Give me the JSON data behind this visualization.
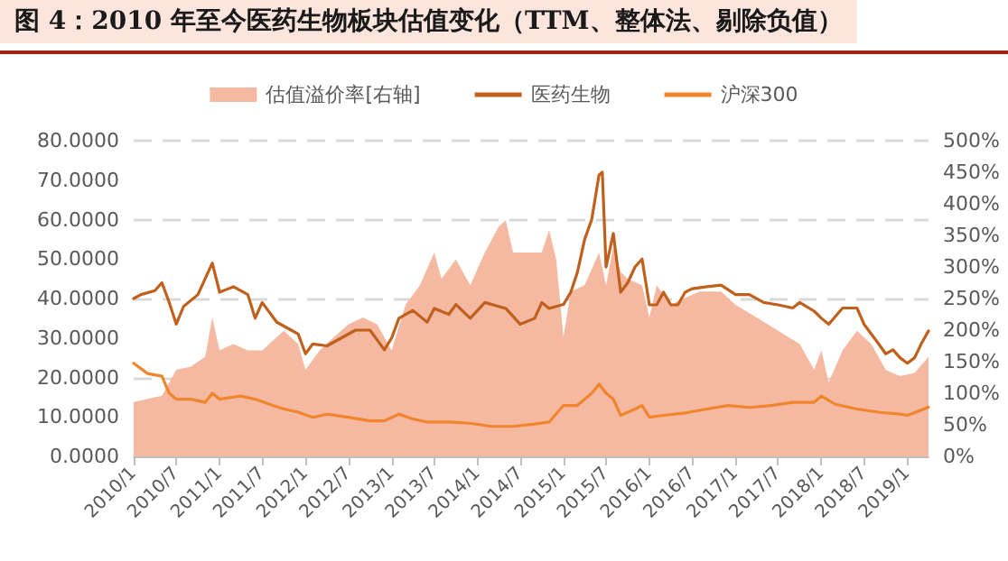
{
  "chart_data": {
    "type": "line",
    "title": "图 4：2010 年至今医药生物板块估值变化（TTM、整体法、剔除负值）",
    "series": [
      {
        "name": "估值溢价率[右轴]",
        "type": "area",
        "axis": "y2",
        "color": "#f4b9a0",
        "x": [
          "2010-01",
          "2010-03",
          "2010-05",
          "2010-07",
          "2010-09",
          "2010-11",
          "2010-12",
          "2011-01",
          "2011-03",
          "2011-05",
          "2011-07",
          "2011-09",
          "2011-10",
          "2011-12",
          "2012-01",
          "2012-03",
          "2012-05",
          "2012-07",
          "2012-09",
          "2012-11",
          "2013-01",
          "2013-03",
          "2013-05",
          "2013-07",
          "2013-08",
          "2013-10",
          "2013-12",
          "2014-02",
          "2014-04",
          "2014-05",
          "2014-06",
          "2014-08",
          "2014-10",
          "2014-11",
          "2014-12",
          "2015-01",
          "2015-02",
          "2015-04",
          "2015-06",
          "2015-07",
          "2015-08",
          "2015-09",
          "2015-10",
          "2015-12",
          "2016-01",
          "2016-02",
          "2016-04",
          "2016-06",
          "2016-08",
          "2016-11",
          "2017-01",
          "2017-04",
          "2017-07",
          "2017-10",
          "2017-12",
          "2018-01",
          "2018-02",
          "2018-04",
          "2018-06",
          "2018-08",
          "2018-10",
          "2018-12",
          "2019-02",
          "2019-04"
        ],
        "values": [
          86,
          91,
          96,
          137,
          142,
          158,
          220,
          168,
          178,
          168,
          168,
          189,
          199,
          178,
          137,
          168,
          189,
          209,
          220,
          209,
          168,
          240,
          271,
          323,
          281,
          312,
          271,
          323,
          364,
          374,
          323,
          323,
          323,
          359,
          312,
          189,
          261,
          271,
          323,
          271,
          333,
          292,
          281,
          271,
          220,
          271,
          240,
          251,
          261,
          261,
          240,
          220,
          199,
          178,
          137,
          168,
          117,
          168,
          199,
          178,
          137,
          127,
          132,
          158
        ]
      },
      {
        "name": "医药生物",
        "color": "#c0601c",
        "x": [
          "2010-01",
          "2010-02",
          "2010-04",
          "2010-05",
          "2010-06",
          "2010-07",
          "2010-08",
          "2010-10",
          "2010-12",
          "2011-01",
          "2011-03",
          "2011-05",
          "2011-06",
          "2011-07",
          "2011-09",
          "2011-11",
          "2011-12",
          "2012-01",
          "2012-02",
          "2012-04",
          "2012-06",
          "2012-08",
          "2012-10",
          "2012-12",
          "2013-01",
          "2013-02",
          "2013-04",
          "2013-06",
          "2013-07",
          "2013-09",
          "2013-10",
          "2013-12",
          "2014-01",
          "2014-02",
          "2014-05",
          "2014-07",
          "2014-09",
          "2014-10",
          "2014-11",
          "2015-01",
          "2015-02",
          "2015-03",
          "2015-04",
          "2015-05",
          "2015-06-01",
          "2015-06-15",
          "2015-07",
          "2015-08",
          "2015-09",
          "2015-10",
          "2015-11",
          "2015-12",
          "2016-01",
          "2016-02",
          "2016-03",
          "2016-04",
          "2016-05",
          "2016-06",
          "2016-07",
          "2016-09",
          "2016-11",
          "2017-01",
          "2017-03",
          "2017-05",
          "2017-07",
          "2017-09",
          "2017-10",
          "2017-12",
          "2018-01",
          "2018-02",
          "2018-04",
          "2018-06",
          "2018-07",
          "2018-09",
          "2018-10",
          "2018-11",
          "2018-12",
          "2019-01",
          "2019-02",
          "2019-03",
          "2019-04"
        ],
        "values": [
          40,
          41,
          42,
          44,
          39,
          33.5,
          38,
          41,
          49,
          41.6,
          43,
          41,
          35,
          39,
          34,
          32,
          31,
          26,
          28.5,
          28,
          30,
          32,
          32,
          27,
          30,
          35,
          37,
          34,
          37.5,
          36,
          38.5,
          35,
          37,
          39,
          37.5,
          33.5,
          35,
          39,
          37.5,
          38.5,
          41.6,
          46.6,
          55,
          60,
          71.3,
          72,
          48,
          56.5,
          41.6,
          44,
          48,
          50,
          38.4,
          38.4,
          41.6,
          38.4,
          38.4,
          41.6,
          42.5,
          43,
          43.4,
          41,
          41,
          39,
          38.4,
          37.6,
          39,
          36.8,
          35,
          33.5,
          37.6,
          37.6,
          33.5,
          28.5,
          26,
          27,
          25,
          23.6,
          25,
          28.5,
          31.8
        ]
      },
      {
        "name": "沪深300",
        "color": "#f0852d",
        "x": [
          "2010-01",
          "2010-03",
          "2010-05",
          "2010-06",
          "2010-07",
          "2010-09",
          "2010-11",
          "2010-12",
          "2011-01",
          "2011-04",
          "2011-06",
          "2011-08",
          "2011-10",
          "2011-12",
          "2012-02",
          "2012-04",
          "2012-07",
          "2012-10",
          "2012-12",
          "2013-02",
          "2013-04",
          "2013-06",
          "2013-09",
          "2013-12",
          "2014-03",
          "2014-06",
          "2014-09",
          "2014-11",
          "2015-01",
          "2015-03",
          "2015-05",
          "2015-06",
          "2015-07",
          "2015-08",
          "2015-09",
          "2015-11",
          "2015-12",
          "2016-01",
          "2016-03",
          "2016-06",
          "2016-09",
          "2016-12",
          "2017-03",
          "2017-06",
          "2017-09",
          "2017-12",
          "2018-01",
          "2018-03",
          "2018-06",
          "2018-09",
          "2018-12",
          "2019-01",
          "2019-03",
          "2019-04"
        ],
        "values": [
          23.6,
          21,
          20.3,
          16,
          14.5,
          14.5,
          13.7,
          16,
          14.5,
          15.3,
          14.5,
          13.2,
          12,
          11.2,
          9.9,
          10.7,
          9.9,
          9,
          9,
          10.7,
          9.5,
          8.7,
          8.7,
          8.4,
          7.6,
          7.6,
          8.2,
          8.7,
          12.9,
          12.9,
          16,
          18.3,
          16,
          14.5,
          10.4,
          12,
          12.9,
          9.9,
          10.4,
          11,
          12,
          12.9,
          12.4,
          12.9,
          13.7,
          13.7,
          15.3,
          13.2,
          12,
          11.2,
          10.7,
          10.4,
          11.7,
          12.5
        ]
      }
    ],
    "xlim": [
      "2010-01",
      "2019-04"
    ],
    "xticks": [
      {
        "value": "2010-01",
        "label": "2010/1"
      },
      {
        "value": "2010-07",
        "label": "2010/7"
      },
      {
        "value": "2011-01",
        "label": "2011/1"
      },
      {
        "value": "2011-07",
        "label": "2011/7"
      },
      {
        "value": "2012-01",
        "label": "2012/1"
      },
      {
        "value": "2012-07",
        "label": "2012/7"
      },
      {
        "value": "2013-01",
        "label": "2013/1"
      },
      {
        "value": "2013-07",
        "label": "2013/7"
      },
      {
        "value": "2014-01",
        "label": "2014/1"
      },
      {
        "value": "2014-07",
        "label": "2014/7"
      },
      {
        "value": "2015-01",
        "label": "2015/1"
      },
      {
        "value": "2015-07",
        "label": "2015/7"
      },
      {
        "value": "2016-01",
        "label": "2016/1"
      },
      {
        "value": "2016-07",
        "label": "2016/7"
      },
      {
        "value": "2017-01",
        "label": "2017/1"
      },
      {
        "value": "2017-07",
        "label": "2017/7"
      },
      {
        "value": "2018-01",
        "label": "2018/1"
      },
      {
        "value": "2018-07",
        "label": "2018/7"
      },
      {
        "value": "2019-01",
        "label": "2019/1"
      }
    ],
    "ylim": [
      0,
      80
    ],
    "yticks": [
      {
        "value": 0,
        "label": "0.0000"
      },
      {
        "value": 10,
        "label": "10.0000"
      },
      {
        "value": 20,
        "label": "20.0000"
      },
      {
        "value": 30,
        "label": "30.0000"
      },
      {
        "value": 40,
        "label": "40.0000"
      },
      {
        "value": 50,
        "label": "50.0000"
      },
      {
        "value": 60,
        "label": "60.0000"
      },
      {
        "value": 70,
        "label": "70.0000"
      },
      {
        "value": 80,
        "label": "80.0000"
      }
    ],
    "y2lim": [
      0,
      500
    ],
    "y2ticks": [
      {
        "value": 0,
        "label": "0%"
      },
      {
        "value": 50,
        "label": "50%"
      },
      {
        "value": 100,
        "label": "100%"
      },
      {
        "value": 150,
        "label": "150%"
      },
      {
        "value": 200,
        "label": "200%"
      },
      {
        "value": 250,
        "label": "250%"
      },
      {
        "value": 300,
        "label": "300%"
      },
      {
        "value": 350,
        "label": "350%"
      },
      {
        "value": 400,
        "label": "400%"
      },
      {
        "value": 450,
        "label": "450%"
      },
      {
        "value": 500,
        "label": "500%"
      }
    ],
    "grid": "y",
    "legend": "top",
    "marker": "none",
    "line_style": "solid"
  }
}
